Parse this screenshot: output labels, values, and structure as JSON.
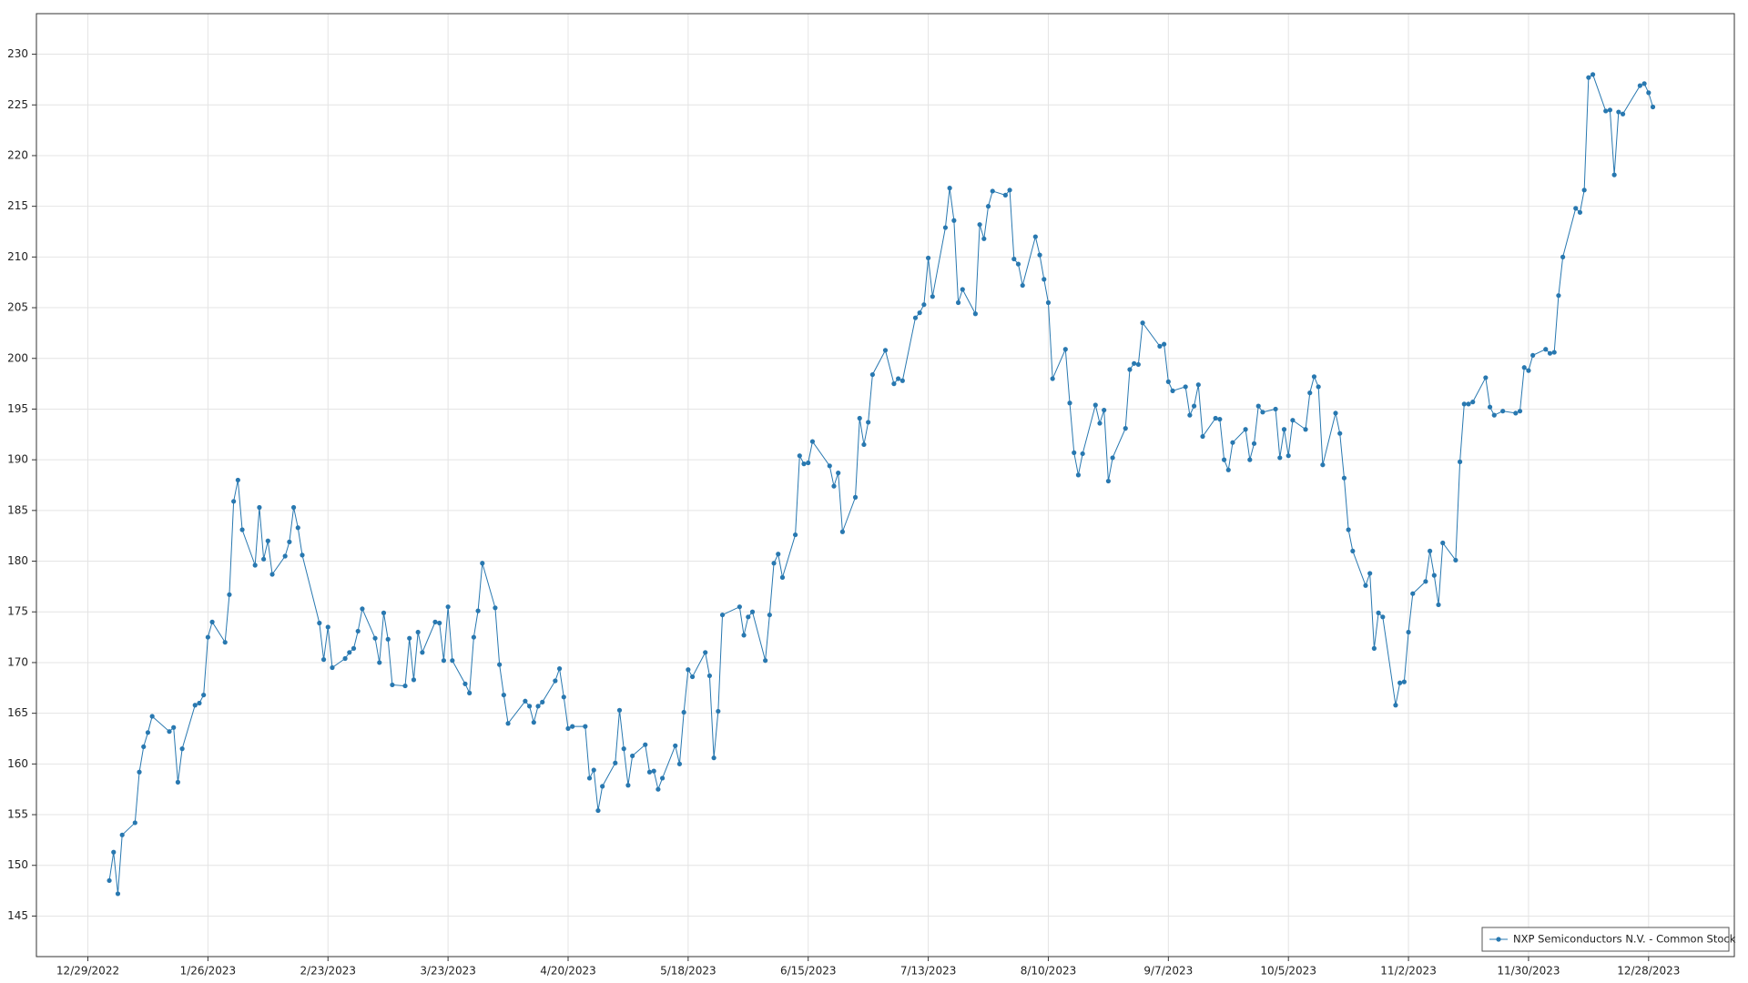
{
  "chart_data": {
    "type": "line",
    "x": [
      "1/3/2023",
      "1/4/2023",
      "1/5/2023",
      "1/6/2023",
      "1/9/2023",
      "1/10/2023",
      "1/11/2023",
      "1/12/2023",
      "1/13/2023",
      "1/17/2023",
      "1/18/2023",
      "1/19/2023",
      "1/20/2023",
      "1/23/2023",
      "1/24/2023",
      "1/25/2023",
      "1/26/2023",
      "1/27/2023",
      "1/30/2023",
      "1/31/2023",
      "2/1/2023",
      "2/2/2023",
      "2/3/2023",
      "2/6/2023",
      "2/7/2023",
      "2/8/2023",
      "2/9/2023",
      "2/10/2023",
      "2/13/2023",
      "2/14/2023",
      "2/15/2023",
      "2/16/2023",
      "2/17/2023",
      "2/21/2023",
      "2/22/2023",
      "2/23/2023",
      "2/24/2023",
      "2/27/2023",
      "2/28/2023",
      "3/1/2023",
      "3/2/2023",
      "3/3/2023",
      "3/6/2023",
      "3/7/2023",
      "3/8/2023",
      "3/9/2023",
      "3/10/2023",
      "3/13/2023",
      "3/14/2023",
      "3/15/2023",
      "3/16/2023",
      "3/17/2023",
      "3/20/2023",
      "3/21/2023",
      "3/22/2023",
      "3/23/2023",
      "3/24/2023",
      "3/27/2023",
      "3/28/2023",
      "3/29/2023",
      "3/30/2023",
      "3/31/2023",
      "4/3/2023",
      "4/4/2023",
      "4/5/2023",
      "4/6/2023",
      "4/10/2023",
      "4/11/2023",
      "4/12/2023",
      "4/13/2023",
      "4/14/2023",
      "4/17/2023",
      "4/18/2023",
      "4/19/2023",
      "4/20/2023",
      "4/21/2023",
      "4/24/2023",
      "4/25/2023",
      "4/26/2023",
      "4/27/2023",
      "4/28/2023",
      "5/1/2023",
      "5/2/2023",
      "5/3/2023",
      "5/4/2023",
      "5/5/2023",
      "5/8/2023",
      "5/9/2023",
      "5/10/2023",
      "5/11/2023",
      "5/12/2023",
      "5/15/2023",
      "5/16/2023",
      "5/17/2023",
      "5/18/2023",
      "5/19/2023",
      "5/22/2023",
      "5/23/2023",
      "5/24/2023",
      "5/25/2023",
      "5/26/2023",
      "5/30/2023",
      "5/31/2023",
      "6/1/2023",
      "6/2/2023",
      "6/5/2023",
      "6/6/2023",
      "6/7/2023",
      "6/8/2023",
      "6/9/2023",
      "6/12/2023",
      "6/13/2023",
      "6/14/2023",
      "6/15/2023",
      "6/16/2023",
      "6/20/2023",
      "6/21/2023",
      "6/22/2023",
      "6/23/2023",
      "6/26/2023",
      "6/27/2023",
      "6/28/2023",
      "6/29/2023",
      "6/30/2023",
      "7/3/2023",
      "7/5/2023",
      "7/6/2023",
      "7/7/2023",
      "7/10/2023",
      "7/11/2023",
      "7/12/2023",
      "7/13/2023",
      "7/14/2023",
      "7/17/2023",
      "7/18/2023",
      "7/19/2023",
      "7/20/2023",
      "7/21/2023",
      "7/24/2023",
      "7/25/2023",
      "7/26/2023",
      "7/27/2023",
      "7/28/2023",
      "7/31/2023",
      "8/1/2023",
      "8/2/2023",
      "8/3/2023",
      "8/4/2023",
      "8/7/2023",
      "8/8/2023",
      "8/9/2023",
      "8/10/2023",
      "8/11/2023",
      "8/14/2023",
      "8/15/2023",
      "8/16/2023",
      "8/17/2023",
      "8/18/2023",
      "8/21/2023",
      "8/22/2023",
      "8/23/2023",
      "8/24/2023",
      "8/25/2023",
      "8/28/2023",
      "8/29/2023",
      "8/30/2023",
      "8/31/2023",
      "9/1/2023",
      "9/5/2023",
      "9/6/2023",
      "9/7/2023",
      "9/8/2023",
      "9/11/2023",
      "9/12/2023",
      "9/13/2023",
      "9/14/2023",
      "9/15/2023",
      "9/18/2023",
      "9/19/2023",
      "9/20/2023",
      "9/21/2023",
      "9/22/2023",
      "9/25/2023",
      "9/26/2023",
      "9/27/2023",
      "9/28/2023",
      "9/29/2023",
      "10/2/2023",
      "10/3/2023",
      "10/4/2023",
      "10/5/2023",
      "10/6/2023",
      "10/9/2023",
      "10/10/2023",
      "10/11/2023",
      "10/12/2023",
      "10/13/2023",
      "10/16/2023",
      "10/17/2023",
      "10/18/2023",
      "10/19/2023",
      "10/20/2023",
      "10/23/2023",
      "10/24/2023",
      "10/25/2023",
      "10/26/2023",
      "10/27/2023",
      "10/30/2023",
      "10/31/2023",
      "11/1/2023",
      "11/2/2023",
      "11/3/2023",
      "11/6/2023",
      "11/7/2023",
      "11/8/2023",
      "11/9/2023",
      "11/10/2023",
      "11/13/2023",
      "11/14/2023",
      "11/15/2023",
      "11/16/2023",
      "11/17/2023",
      "11/20/2023",
      "11/21/2023",
      "11/22/2023",
      "11/24/2023",
      "11/27/2023",
      "11/28/2023",
      "11/29/2023",
      "11/30/2023",
      "12/1/2023",
      "12/4/2023",
      "12/5/2023",
      "12/6/2023",
      "12/7/2023",
      "12/8/2023",
      "12/11/2023",
      "12/12/2023",
      "12/13/2023",
      "12/14/2023",
      "12/15/2023",
      "12/18/2023",
      "12/19/2023",
      "12/20/2023",
      "12/21/2023",
      "12/22/2023",
      "12/26/2023",
      "12/27/2023",
      "12/28/2023",
      "12/29/2023"
    ],
    "series": [
      {
        "name": "NXP Semiconductors N.V. - Common Stock",
        "color": "#2878b0",
        "values": [
          148.5,
          151.3,
          147.2,
          153,
          154.2,
          159.2,
          161.7,
          163.1,
          164.7,
          163.2,
          163.6,
          158.2,
          161.5,
          165.8,
          166,
          166.8,
          172.5,
          174,
          172,
          176.7,
          185.9,
          188,
          183.1,
          179.6,
          185.3,
          180.2,
          182,
          178.7,
          180.5,
          181.9,
          185.3,
          183.3,
          180.6,
          173.9,
          170.3,
          173.5,
          169.5,
          170.4,
          171,
          171.4,
          173.1,
          175.3,
          172.4,
          170,
          174.9,
          172.3,
          167.8,
          167.7,
          172.4,
          168.3,
          173,
          171,
          174,
          173.9,
          170.2,
          175.5,
          170.2,
          167.9,
          167,
          172.5,
          175.1,
          179.8,
          175.4,
          169.8,
          166.8,
          164,
          166.2,
          165.7,
          164.1,
          165.7,
          166.1,
          168.2,
          169.4,
          166.6,
          163.5,
          163.7,
          163.7,
          158.6,
          159.4,
          155.4,
          157.8,
          160.1,
          165.3,
          161.5,
          157.9,
          160.8,
          161.9,
          159.2,
          159.3,
          157.5,
          158.6,
          161.8,
          160,
          165.1,
          169.3,
          168.6,
          171,
          168.7,
          160.6,
          165.2,
          174.7,
          175.5,
          172.7,
          174.5,
          175,
          170.2,
          174.7,
          179.8,
          180.7,
          178.4,
          182.6,
          190.4,
          189.6,
          189.7,
          191.8,
          189.4,
          187.4,
          188.7,
          182.9,
          186.3,
          194.1,
          191.5,
          193.7,
          198.4,
          200.8,
          197.5,
          198,
          197.8,
          204,
          204.5,
          205.3,
          209.9,
          206.1,
          212.9,
          216.8,
          213.6,
          205.5,
          206.8,
          204.4,
          213.2,
          211.8,
          215,
          216.5,
          216.1,
          216.6,
          209.8,
          209.3,
          207.2,
          212,
          210.2,
          207.8,
          205.5,
          198,
          200.9,
          195.6,
          190.7,
          188.5,
          190.6,
          195.4,
          193.6,
          194.9,
          187.9,
          190.2,
          193.1,
          198.9,
          199.5,
          199.4,
          203.5,
          201.2,
          201.4,
          197.7,
          196.8,
          197.2,
          194.4,
          195.3,
          197.4,
          192.3,
          194.1,
          194,
          190,
          189,
          191.7,
          193,
          190,
          191.6,
          195.3,
          194.7,
          195,
          190.2,
          193,
          190.4,
          193.9,
          193,
          196.6,
          198.2,
          197.2,
          189.5,
          194.6,
          192.6,
          188.2,
          183.1,
          181,
          177.6,
          178.8,
          171.4,
          174.9,
          174.5,
          165.8,
          168,
          168.1,
          173,
          176.8,
          178,
          181,
          178.6,
          175.7,
          181.8,
          180.1,
          189.8,
          195.5,
          195.5,
          195.7,
          198.1,
          195.2,
          194.4,
          194.8,
          194.6,
          194.8,
          199.1,
          198.8,
          200.3,
          200.9,
          200.5,
          200.6,
          206.2,
          210,
          214.8,
          214.4,
          216.6,
          227.7,
          228,
          224.4,
          224.5,
          218.1,
          224.3,
          224.1,
          226.9,
          227.1,
          226.2,
          224.8
        ]
      }
    ],
    "xlim": [
      "12/17/2022",
      "1/17/2024"
    ],
    "xticks": [
      "12/29/2022",
      "1/26/2023",
      "2/23/2023",
      "3/23/2023",
      "4/20/2023",
      "5/18/2023",
      "6/15/2023",
      "7/13/2023",
      "8/10/2023",
      "9/7/2023",
      "10/5/2023",
      "11/2/2023",
      "11/30/2023",
      "12/28/2023"
    ],
    "ylim": [
      141,
      234
    ],
    "yticks": [
      145,
      150,
      155,
      160,
      165,
      170,
      175,
      180,
      185,
      190,
      195,
      200,
      205,
      210,
      215,
      220,
      225,
      230
    ],
    "grid": true,
    "legend": "lower right"
  }
}
